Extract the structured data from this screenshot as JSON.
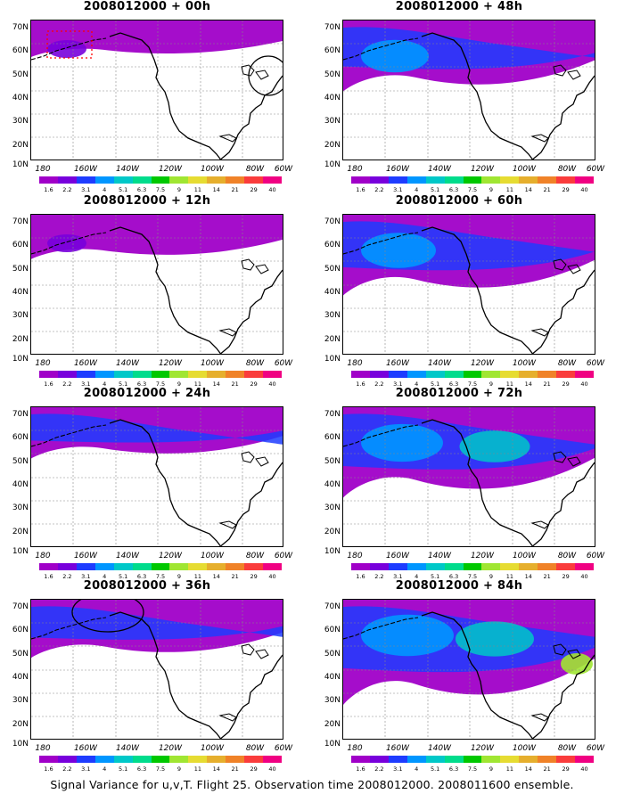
{
  "caption": "Signal Variance for u,v,T. Flight 25. Observation time 2008012000. 2008011600 ensemble.",
  "lat_labels": [
    "70N",
    "60N",
    "50N",
    "40N",
    "30N",
    "20N",
    "10N"
  ],
  "lon_labels": [
    "180",
    "160W",
    "140W",
    "120W",
    "100W",
    "80W",
    "60W"
  ],
  "colorbar": {
    "labels": [
      "1.6",
      "2.2",
      "3.1",
      "4",
      "5.1",
      "6.3",
      "7.5",
      "9",
      "11",
      "14",
      "21",
      "29",
      "40"
    ],
    "colors": [
      "#a000c8",
      "#7800dc",
      "#1e3cff",
      "#0096ff",
      "#00c8c8",
      "#00dc8c",
      "#00c800",
      "#a0e632",
      "#e6dc32",
      "#e6af2d",
      "#f08228",
      "#fa3c3c",
      "#f00082"
    ]
  },
  "panels": [
    {
      "title": "2008012000 + 00h",
      "level": 0.1,
      "marker": "red-dotted-box-and-east-coast-circle"
    },
    {
      "title": "2008012000 + 48h",
      "level": 0.45
    },
    {
      "title": "2008012000 + 12h",
      "level": 0.18
    },
    {
      "title": "2008012000 + 60h",
      "level": 0.55
    },
    {
      "title": "2008012000 + 24h",
      "level": 0.25
    },
    {
      "title": "2008012000 + 72h",
      "level": 0.65
    },
    {
      "title": "2008012000 + 36h",
      "level": 0.32,
      "marker": "circle-gulf-of-alaska"
    },
    {
      "title": "2008012000 + 84h",
      "level": 0.8
    }
  ]
}
